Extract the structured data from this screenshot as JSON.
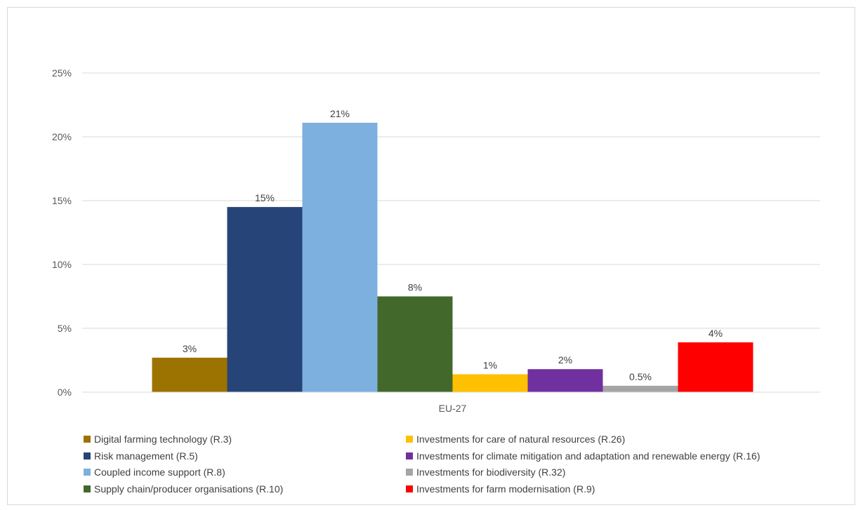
{
  "chart_data": {
    "type": "bar",
    "categories": [
      "EU-27"
    ],
    "series": [
      {
        "name": "Digital farming technology (R.3)",
        "value": 2.7,
        "label": "3%",
        "color": "#9C7200"
      },
      {
        "name": "Risk management (R.5)",
        "value": 14.5,
        "label": "15%",
        "color": "#264478"
      },
      {
        "name": "Coupled income support (R.8)",
        "value": 21.1,
        "label": "21%",
        "color": "#7EB0DF"
      },
      {
        "name": "Supply chain/producer organisations (R.10)",
        "value": 7.5,
        "label": "8%",
        "color": "#43682B"
      },
      {
        "name": "Investments for care of natural resources (R.26)",
        "value": 1.4,
        "label": "1%",
        "color": "#FFC000"
      },
      {
        "name": "Investments for climate mitigation and adaptation and renewable energy (R.16)",
        "value": 1.8,
        "label": "2%",
        "color": "#7030A0"
      },
      {
        "name": "Investments for biodiversity (R.32)",
        "value": 0.5,
        "label": "0.5%",
        "color": "#A5A5A5"
      },
      {
        "name": "Investments for farm modernisation (R.9)",
        "value": 3.9,
        "label": "4%",
        "color": "#FF0000"
      }
    ],
    "yticks": [
      "0%",
      "5%",
      "10%",
      "15%",
      "20%",
      "25%"
    ],
    "ylim": [
      0,
      25
    ],
    "grid": true,
    "legend_position": "bottom"
  }
}
